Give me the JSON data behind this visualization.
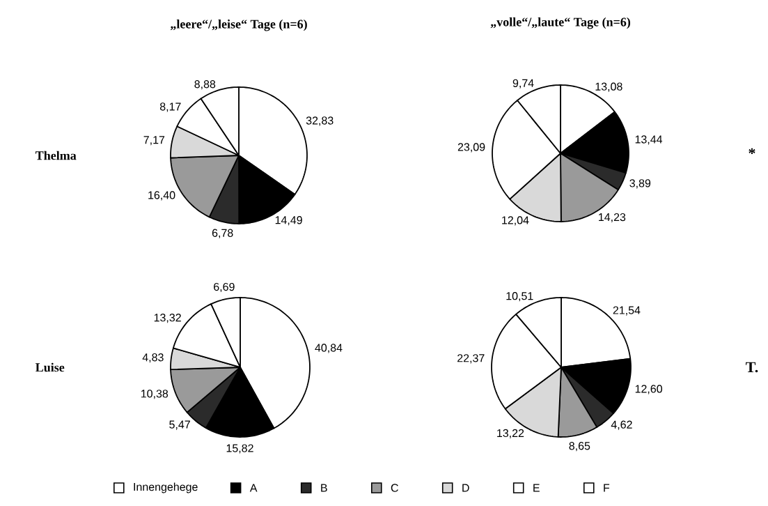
{
  "chart_data": [
    {
      "type": "pie",
      "title": "„leere“/„leise“ Tage (n=6)",
      "ylabel": "Thelma",
      "legend": "bottom",
      "categories": [
        "Innengehege",
        "A",
        "B",
        "C",
        "D",
        "E",
        "F"
      ],
      "colors": [
        "#ffffff",
        "#000000",
        "#2b2b2b",
        "#9a9a9a",
        "#d9d9d9",
        "#ffffff",
        "#ffffff"
      ],
      "values": [
        32.83,
        14.49,
        6.78,
        16.4,
        7.17,
        8.17,
        8.88
      ],
      "value_labels": [
        "32,83",
        "14,49",
        "6,78",
        "16,40",
        "7,17",
        "8,17",
        "8,88"
      ]
    },
    {
      "type": "pie",
      "title": "„volle“/„laute“ Tage (n=6)",
      "annotations": [
        "*"
      ],
      "categories": [
        null,
        null,
        null,
        null,
        null,
        null,
        null
      ],
      "colors": [
        "#ffffff",
        "#000000",
        "#2b2b2b",
        "#9a9a9a",
        "#d9d9d9",
        "#ffffff",
        "#ffffff"
      ],
      "values": [
        13.08,
        13.44,
        3.89,
        14.23,
        12.04,
        23.09,
        9.74
      ],
      "value_labels": [
        "13,08",
        "13,44",
        "3,89",
        "14,23",
        "12,04",
        "23,09",
        "9,74"
      ]
    },
    {
      "type": "pie",
      "ylabel": "Luise",
      "categories": [
        null,
        null,
        null,
        null,
        null,
        null,
        null
      ],
      "colors": [
        "#ffffff",
        "#000000",
        "#2b2b2b",
        "#9a9a9a",
        "#d9d9d9",
        "#ffffff",
        "#ffffff"
      ],
      "values": [
        40.84,
        15.82,
        5.47,
        10.38,
        4.83,
        13.32,
        6.69
      ],
      "value_labels": [
        "40,84",
        "15,82",
        "5,47",
        "10,38",
        "4,83",
        "13,32",
        "6,69"
      ]
    },
    {
      "type": "pie",
      "annotations": [
        "T."
      ],
      "categories": [
        null,
        null,
        null,
        null,
        null,
        null,
        null
      ],
      "colors": [
        "#ffffff",
        "#000000",
        "#2b2b2b",
        "#9a9a9a",
        "#d9d9d9",
        "#ffffff",
        "#ffffff"
      ],
      "values": [
        21.54,
        12.6,
        4.62,
        8.65,
        13.22,
        22.37,
        10.51
      ],
      "value_labels": [
        "21,54",
        "12,60",
        "4,62",
        "8,65",
        "13,22",
        "22,37",
        "10,51"
      ]
    }
  ]
}
